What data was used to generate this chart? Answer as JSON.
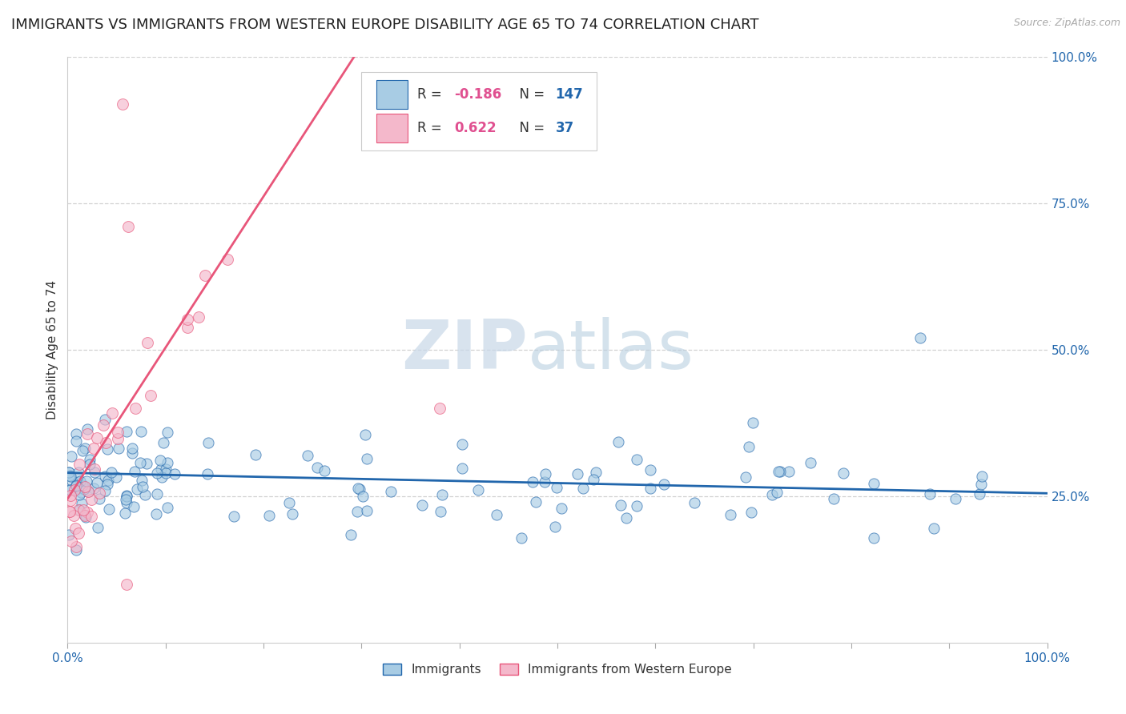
{
  "title": "IMMIGRANTS VS IMMIGRANTS FROM WESTERN EUROPE DISABILITY AGE 65 TO 74 CORRELATION CHART",
  "source": "Source: ZipAtlas.com",
  "ylabel": "Disability Age 65 to 74",
  "xlim": [
    0.0,
    1.0
  ],
  "ylim": [
    0.0,
    1.0
  ],
  "blue_color": "#a8cce4",
  "pink_color": "#f4b8cb",
  "blue_line_color": "#2166ac",
  "pink_line_color": "#e8567a",
  "R_blue": -0.186,
  "N_blue": 147,
  "R_pink": 0.622,
  "N_pink": 37,
  "legend_label_blue": "Immigrants",
  "legend_label_pink": "Immigrants from Western Europe",
  "watermark_zip": "ZIP",
  "watermark_atlas": "atlas",
  "background_color": "#ffffff",
  "grid_color": "#cccccc",
  "title_fontsize": 13,
  "axis_label_fontsize": 11,
  "tick_fontsize": 11,
  "R_text_color": "#e05090",
  "N_text_color": "#2166ac",
  "ytick_color": "#2166ac",
  "xtick_color": "#2166ac"
}
